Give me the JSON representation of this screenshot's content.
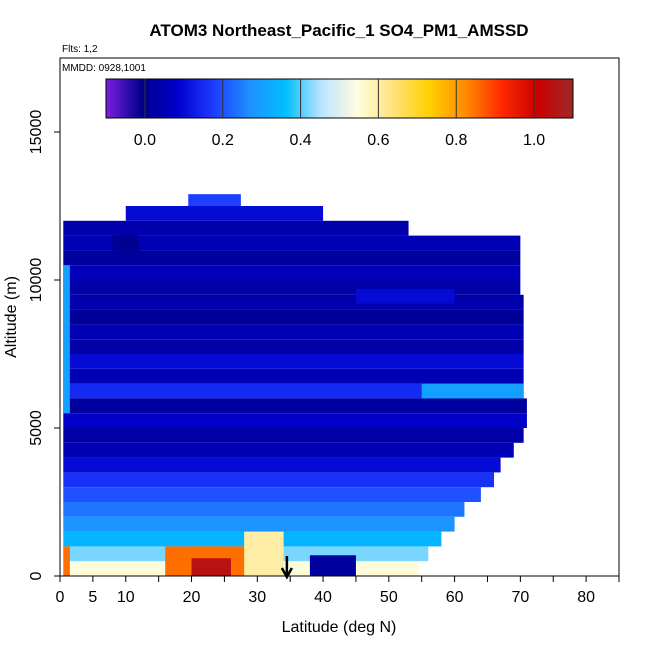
{
  "chart_data": {
    "type": "heatmap",
    "title": "ATOM3 Northeast_Pacific_1 SO4_PM1_AMSSD",
    "annotations": [
      "Flts: 1,2",
      "MMDD: 0928,1001"
    ],
    "xlabel": "Latitude (deg N)",
    "ylabel": "Altitude (m)",
    "xlim": [
      0,
      85
    ],
    "ylim": [
      0,
      17500
    ],
    "x_ticks": [
      0,
      5,
      10,
      20,
      30,
      40,
      50,
      60,
      70,
      80
    ],
    "x_tick_labels": [
      "0",
      "5",
      "10",
      "20",
      "30",
      "40",
      "50",
      "60",
      "70",
      "80"
    ],
    "y_ticks": [
      0,
      5000,
      10000,
      15000
    ],
    "y_tick_labels": [
      "0",
      "5000",
      "10000",
      "15000"
    ],
    "colorbar": {
      "range": [
        -0.1,
        1.1
      ],
      "ticks": [
        0.0,
        0.2,
        0.4,
        0.6,
        0.8,
        1.0
      ],
      "tick_labels": [
        "0.0",
        "0.2",
        "0.4",
        "0.6",
        "0.8",
        "1.0"
      ],
      "colors": [
        "#7b1fe0",
        "#00008b",
        "#0000cd",
        "#1e3cff",
        "#1e90ff",
        "#00bfff",
        "#bde4ff",
        "#fffde0",
        "#ffe27a",
        "#ffd000",
        "#ff8c00",
        "#ff2a00",
        "#cc0000",
        "#a0282a"
      ]
    },
    "arrow_latitude": 34.5,
    "layers": [
      {
        "alt": [
          0,
          500
        ],
        "lat": [
          0.5,
          54.5
        ],
        "value": 0.55
      },
      {
        "alt": [
          500,
          1000
        ],
        "lat": [
          0.5,
          56
        ],
        "value": 0.42
      },
      {
        "alt": [
          1000,
          1500
        ],
        "lat": [
          0.5,
          58
        ],
        "value": 0.34
      },
      {
        "alt": [
          1500,
          2000
        ],
        "lat": [
          0.5,
          60
        ],
        "value": 0.28
      },
      {
        "alt": [
          2000,
          2500
        ],
        "lat": [
          0.5,
          61.5
        ],
        "value": 0.24
      },
      {
        "alt": [
          2500,
          3000
        ],
        "lat": [
          0.5,
          64
        ],
        "value": 0.2
      },
      {
        "alt": [
          3000,
          3500
        ],
        "lat": [
          0.5,
          66
        ],
        "value": 0.16
      },
      {
        "alt": [
          3500,
          4000
        ],
        "lat": [
          0.5,
          67
        ],
        "value": 0.1
      },
      {
        "alt": [
          4000,
          4500
        ],
        "lat": [
          0.5,
          69
        ],
        "value": 0.05
      },
      {
        "alt": [
          4500,
          5000
        ],
        "lat": [
          0.5,
          70.5
        ],
        "value": 0.03
      },
      {
        "alt": [
          5000,
          5500
        ],
        "lat": [
          0.5,
          71
        ],
        "value": 0.08
      },
      {
        "alt": [
          5500,
          6000
        ],
        "lat": [
          0.5,
          71
        ],
        "value": 0.02
      },
      {
        "alt": [
          6000,
          6500
        ],
        "lat": [
          0.5,
          70.5
        ],
        "value": 0.15
      },
      {
        "alt": [
          6500,
          7000
        ],
        "lat": [
          0.5,
          70.5
        ],
        "value": 0.05
      },
      {
        "alt": [
          7000,
          7500
        ],
        "lat": [
          0.5,
          70.5
        ],
        "value": 0.1
      },
      {
        "alt": [
          7500,
          8000
        ],
        "lat": [
          0.5,
          70.5
        ],
        "value": 0.03
      },
      {
        "alt": [
          8000,
          8500
        ],
        "lat": [
          0.5,
          70.5
        ],
        "value": 0.05
      },
      {
        "alt": [
          8500,
          9000
        ],
        "lat": [
          0.5,
          70.5
        ],
        "value": 0.01
      },
      {
        "alt": [
          9000,
          9500
        ],
        "lat": [
          0.5,
          70.5
        ],
        "value": 0.04
      },
      {
        "alt": [
          9500,
          10000
        ],
        "lat": [
          0.5,
          70
        ],
        "value": 0.03
      },
      {
        "alt": [
          10000,
          10500
        ],
        "lat": [
          0.5,
          70
        ],
        "value": 0.06
      },
      {
        "alt": [
          10500,
          11000
        ],
        "lat": [
          0.5,
          70
        ],
        "value": 0.02
      },
      {
        "alt": [
          11000,
          11500
        ],
        "lat": [
          0.5,
          70
        ],
        "value": 0.05
      },
      {
        "alt": [
          11500,
          12000
        ],
        "lat": [
          0.5,
          53
        ],
        "value": 0.04
      },
      {
        "alt": [
          12000,
          12500
        ],
        "lat": [
          10,
          40
        ],
        "value": 0.1
      },
      {
        "alt": [
          12500,
          12900
        ],
        "lat": [
          19.5,
          27.5
        ],
        "value": 0.18
      }
    ],
    "patches": [
      {
        "alt": [
          0,
          1000
        ],
        "lat": [
          0.5,
          1.5
        ],
        "value": 0.85
      },
      {
        "alt": [
          0,
          1000
        ],
        "lat": [
          16,
          31
        ],
        "value": 0.85
      },
      {
        "alt": [
          0,
          600
        ],
        "lat": [
          20,
          26
        ],
        "value": 1.05
      },
      {
        "alt": [
          0,
          1500
        ],
        "lat": [
          28,
          34
        ],
        "value": 0.6
      },
      {
        "alt": [
          0,
          700
        ],
        "lat": [
          38,
          45
        ],
        "value": 0.02
      },
      {
        "alt": [
          5500,
          10500
        ],
        "lat": [
          0.5,
          1.5
        ],
        "value": 0.3
      },
      {
        "alt": [
          6000,
          6500
        ],
        "lat": [
          55,
          70.5
        ],
        "value": 0.3
      },
      {
        "alt": [
          9200,
          9700
        ],
        "lat": [
          45,
          60
        ],
        "value": 0.1
      },
      {
        "alt": [
          11000,
          11500
        ],
        "lat": [
          8,
          12
        ],
        "value": 0.0
      }
    ]
  }
}
